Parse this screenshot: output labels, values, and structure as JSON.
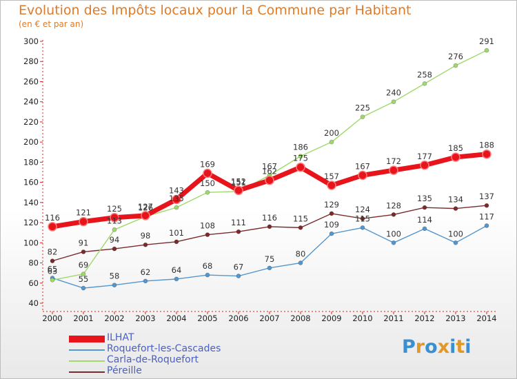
{
  "title": "Evolution des Impôts locaux pour la Commune par Habitant",
  "subtitle": "(en € et par an)",
  "logo": {
    "text": "Proxiti",
    "colors": [
      "#3a8fd0",
      "#e0982a",
      "#3a8fd0",
      "#e0982a",
      "#3a8fd0",
      "#e0982a",
      "#3a8fd0"
    ]
  },
  "chart_data": {
    "type": "line",
    "x": [
      2000,
      2001,
      2002,
      2003,
      2004,
      2005,
      2006,
      2007,
      2008,
      2009,
      2010,
      2011,
      2012,
      2013,
      2014
    ],
    "ylim": [
      40,
      300
    ],
    "yticks": [
      40,
      60,
      80,
      100,
      120,
      140,
      160,
      180,
      200,
      220,
      240,
      260,
      280,
      300
    ],
    "grid": false,
    "legend_position": "bottom-left",
    "series": [
      {
        "name": "ILHAT",
        "color": "#e8141c",
        "values": [
          116,
          121,
          125,
          127,
          143,
          169,
          152,
          162,
          175,
          157,
          167,
          172,
          177,
          185,
          188
        ]
      },
      {
        "name": "Roquefort-les-Cascades",
        "color": "#5596cc",
        "values": [
          65,
          55,
          58,
          62,
          64,
          68,
          67,
          75,
          80,
          109,
          115,
          100,
          114,
          100,
          117
        ]
      },
      {
        "name": "Carla-de-Roquefort",
        "color": "#9fd96a",
        "values": [
          63,
          69,
          113,
          126,
          135,
          150,
          151,
          167,
          186,
          200,
          225,
          240,
          258,
          276,
          291
        ]
      },
      {
        "name": "Péreille",
        "color": "#7a2a2a",
        "values": [
          82,
          91,
          94,
          98,
          101,
          108,
          111,
          116,
          115,
          129,
          124,
          128,
          135,
          134,
          137
        ]
      }
    ]
  }
}
